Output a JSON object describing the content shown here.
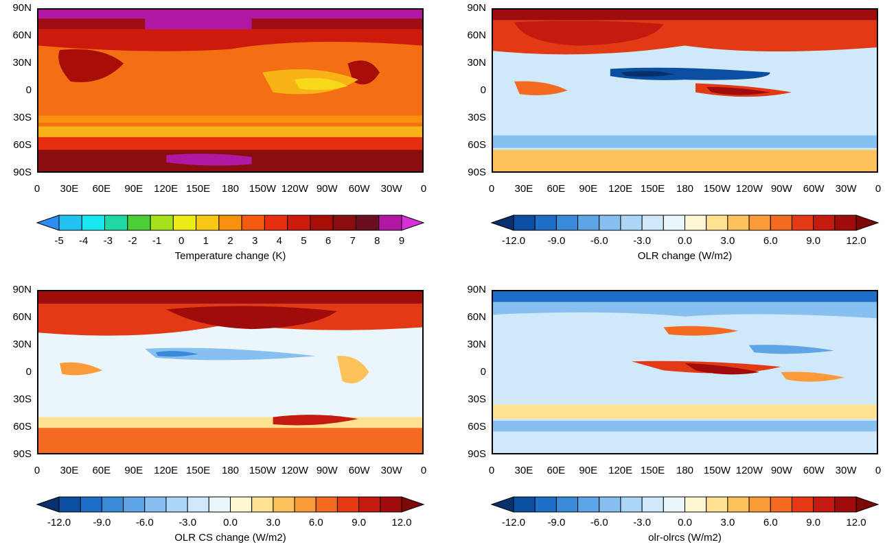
{
  "lat_labels": [
    "90N",
    "60N",
    "30N",
    "0",
    "30S",
    "60S",
    "90S"
  ],
  "lon_labels": [
    "0",
    "30E",
    "60E",
    "90E",
    "120E",
    "150E",
    "180",
    "150W",
    "120W",
    "90W",
    "60W",
    "30W",
    "0"
  ],
  "panels": [
    {
      "id": "temp",
      "variable": "Temperature change",
      "colorbar": {
        "title": "Temperature change (K)",
        "ticks": [
          "-5",
          "-4",
          "-3",
          "-2",
          "-1",
          "0",
          "1",
          "2",
          "3",
          "4",
          "5",
          "6",
          "7",
          "8",
          "9"
        ],
        "colors": [
          "#2f8cf5",
          "#24c2f0",
          "#19e8f0",
          "#20d8a4",
          "#4cce36",
          "#a6e21c",
          "#ecec14",
          "#f8c816",
          "#f8920e",
          "#f45a10",
          "#e82e10",
          "#cc1a0c",
          "#a80e08",
          "#8a0e10",
          "#6a0e20",
          "#b018a4",
          "#d830d6"
        ]
      }
    },
    {
      "id": "olr",
      "variable": "OLR change",
      "colorbar": {
        "title": "OLR change (W/m2)",
        "ticks": [
          "-12.0",
          "-9.0",
          "-6.0",
          "-3.0",
          "0.0",
          "3.0",
          "6.0",
          "9.0",
          "12.0"
        ],
        "colors": [
          "#08306b",
          "#0c4ea0",
          "#1e6ec6",
          "#3a8ad8",
          "#5ea4e6",
          "#86c0f0",
          "#acd6f6",
          "#cfe8fa",
          "#ebf6fc",
          "#fff6d4",
          "#fee292",
          "#fdc25c",
          "#fb9a38",
          "#f46a20",
          "#e23a14",
          "#c41a10",
          "#a00c0c",
          "#7c0808"
        ]
      }
    },
    {
      "id": "olrcs",
      "variable": "OLR CS change",
      "colorbar": {
        "title": "OLR CS change (W/m2)",
        "ticks": [
          "-12.0",
          "-9.0",
          "-6.0",
          "-3.0",
          "0.0",
          "3.0",
          "6.0",
          "9.0",
          "12.0"
        ],
        "colors": [
          "#08306b",
          "#0c4ea0",
          "#1e6ec6",
          "#3a8ad8",
          "#5ea4e6",
          "#86c0f0",
          "#acd6f6",
          "#cfe8fa",
          "#ebf6fc",
          "#fff6d4",
          "#fee292",
          "#fdc25c",
          "#fb9a38",
          "#f46a20",
          "#e23a14",
          "#c41a10",
          "#a00c0c",
          "#7c0808"
        ]
      }
    },
    {
      "id": "diff",
      "variable": "olr-olrcs",
      "colorbar": {
        "title": "olr-olrcs (W/m2)",
        "ticks": [
          "-12.0",
          "-9.0",
          "-6.0",
          "-3.0",
          "0.0",
          "3.0",
          "6.0",
          "9.0",
          "12.0"
        ],
        "colors": [
          "#08306b",
          "#0c4ea0",
          "#1e6ec6",
          "#3a8ad8",
          "#5ea4e6",
          "#86c0f0",
          "#acd6f6",
          "#cfe8fa",
          "#ebf6fc",
          "#fff6d4",
          "#fee292",
          "#fdc25c",
          "#fb9a38",
          "#f46a20",
          "#e23a14",
          "#c41a10",
          "#a00c0c",
          "#7c0808"
        ]
      }
    }
  ]
}
